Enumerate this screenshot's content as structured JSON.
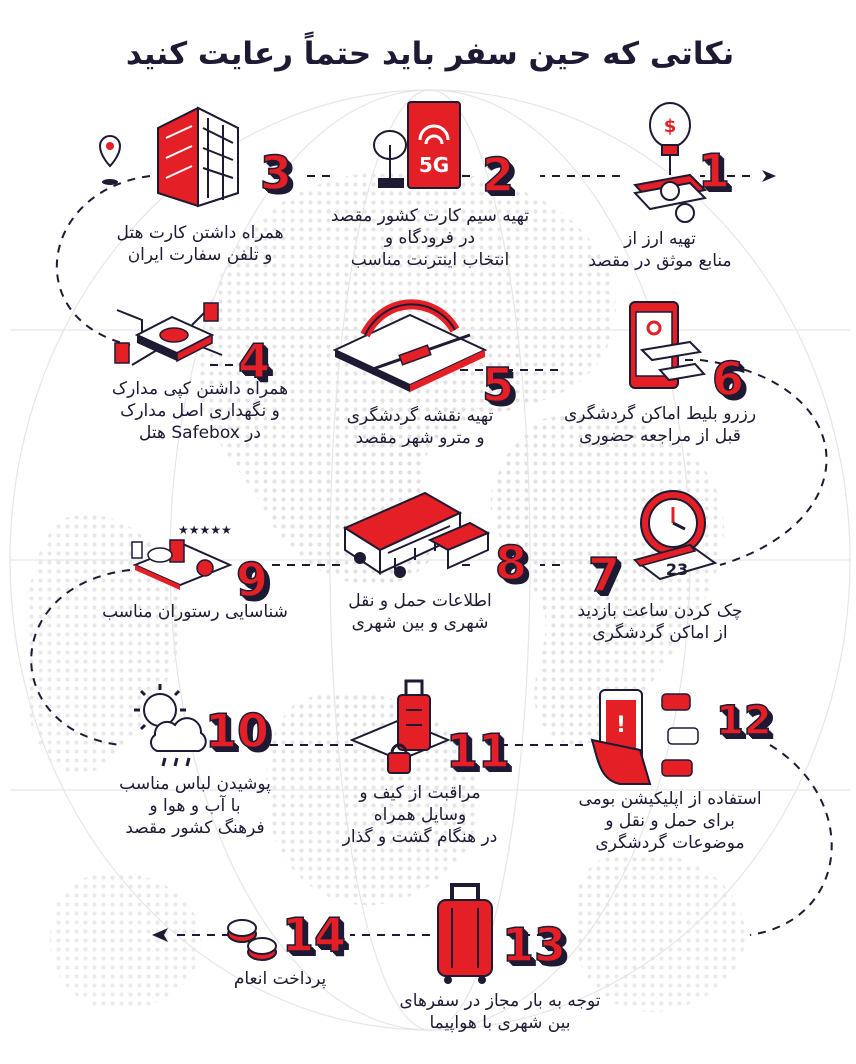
{
  "title": "نکاتی که حین سفر باید حتماً رعایت کنید",
  "colors": {
    "accent": "#e41f26",
    "ink": "#1e1a33",
    "grey": "#d8d8d8"
  },
  "steps": [
    {
      "num": "1",
      "icon": "money-lightbulb-icon",
      "lines": [
        "تهیه ارز از",
        "منابع موثق در مقصد"
      ]
    },
    {
      "num": "2",
      "icon": "sim-card-5g-icon",
      "lines": [
        "تهیه سیم کارت کشور مقصد",
        "در فرودگاه و",
        "انتخاب اینترنت مناسب"
      ]
    },
    {
      "num": "3",
      "icon": "hotel-building-icon",
      "lines": [
        "همراه داشتن کارت هتل",
        "و تلفن سفارت ایران"
      ]
    },
    {
      "num": "4",
      "icon": "safebox-documents-icon",
      "lines": [
        "همراه داشتن کپی مدارک",
        "و نگهداری اصل مدارک",
        "در Safebox هتل"
      ]
    },
    {
      "num": "5",
      "icon": "metro-station-icon",
      "lines": [
        "تهیه نقشه گردشگری",
        "و مترو شهر مقصد"
      ]
    },
    {
      "num": "6",
      "icon": "mobile-ticket-icon",
      "lines": [
        "رزرو بلیط اماکن گردشگری",
        "قبل از مراجعه حضوری"
      ]
    },
    {
      "num": "7",
      "icon": "clock-calendar-icon",
      "lines": [
        "چک کردن ساعت بازدید",
        "از اماکن گردشگری"
      ]
    },
    {
      "num": "8",
      "icon": "bus-icon",
      "lines": [
        "اطلاعات حمل و نقل",
        "شهری و بین شهری"
      ]
    },
    {
      "num": "9",
      "icon": "restaurant-rating-icon",
      "lines": [
        "شناسایی رستوران مناسب"
      ]
    },
    {
      "num": "10",
      "icon": "weather-icon",
      "lines": [
        "پوشیدن لباس مناسب",
        "با آب و هوا و",
        "فرهنگ کشور مقصد"
      ]
    },
    {
      "num": "11",
      "icon": "luggage-lock-icon",
      "lines": [
        "مراقبت از کیف و",
        "وسایل همراه",
        "در هنگام گشت و گذار"
      ]
    },
    {
      "num": "12",
      "icon": "mobile-app-icon",
      "lines": [
        "استفاده از اپلیکیشن بومی",
        "برای حمل و نقل و",
        "موضوعات گردشگری"
      ]
    },
    {
      "num": "13",
      "icon": "suitcase-icon",
      "lines": [
        "توجه به بار مجاز در سفرهای",
        "بین شهری با هواپیما"
      ]
    },
    {
      "num": "14",
      "icon": "coins-icon",
      "lines": [
        "پرداخت انعام"
      ]
    }
  ]
}
